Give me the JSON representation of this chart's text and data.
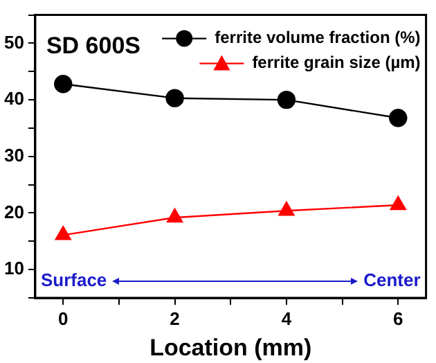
{
  "chart_data": {
    "type": "line",
    "title": "SD 600S",
    "xlabel": "Location (mm)",
    "x": [
      0,
      2,
      4,
      6
    ],
    "series": [
      {
        "name": "ferrite volume fraction (%)",
        "color": "#000000",
        "values": [
          42.8,
          40.3,
          40.0,
          36.8
        ],
        "marker": "circle"
      },
      {
        "name": "ferrite grain size (µm)",
        "color": "#ff0000",
        "values": [
          16.1,
          19.2,
          20.4,
          21.4
        ],
        "marker": "triangle"
      }
    ],
    "xlim": [
      -0.5,
      6.5
    ],
    "xticks": [
      0,
      {
        "value": 1,
        "label": null
      },
      2,
      {
        "value": 3,
        "label": null
      },
      4,
      {
        "value": 5,
        "label": null
      },
      6
    ],
    "ylim": [
      5,
      55
    ],
    "yticks": [
      {
        "value": 5,
        "label": null
      },
      10,
      {
        "value": 15,
        "label": null
      },
      20,
      {
        "value": 25,
        "label": null
      },
      30,
      {
        "value": 35,
        "label": null
      },
      40,
      {
        "value": 45,
        "label": null
      },
      50,
      {
        "value": 55,
        "label": null
      }
    ],
    "annotations": [
      "Surface",
      "Center"
    ],
    "legend": "top right",
    "grid": false,
    "line_style": "solid"
  }
}
